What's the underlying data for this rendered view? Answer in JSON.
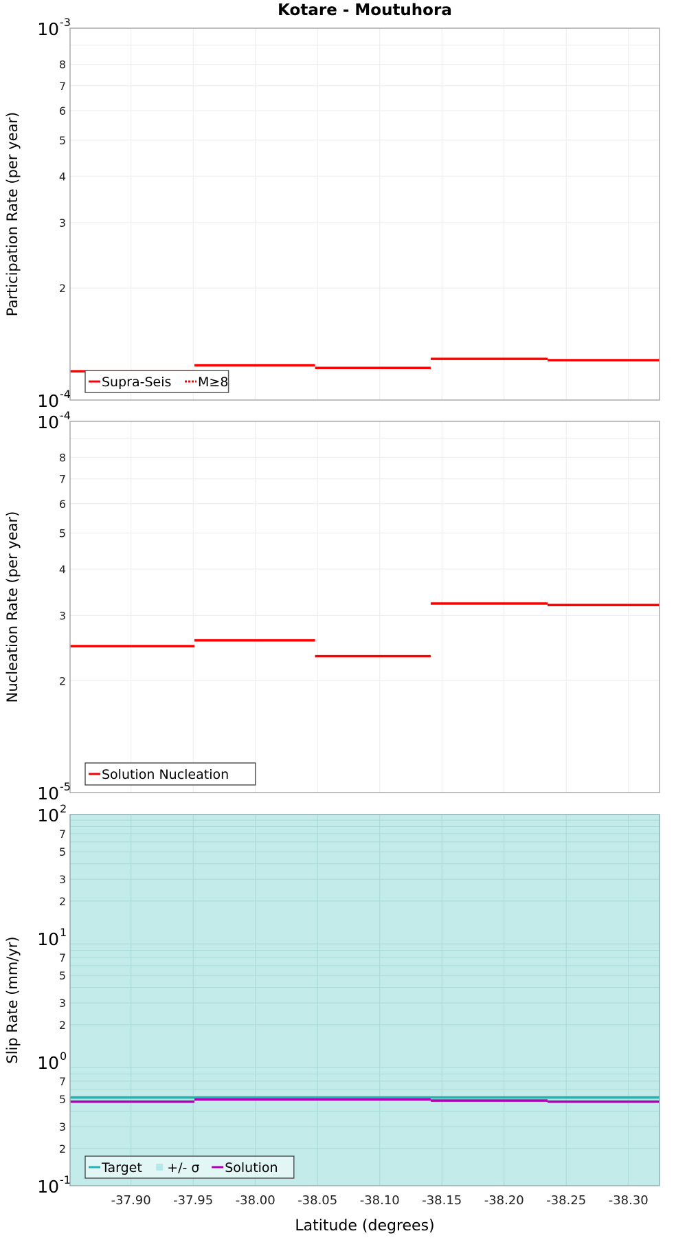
{
  "chart_data": [
    {
      "type": "line",
      "subtype": "step",
      "title": "Kotare - Moutuhora",
      "xlabel": "Latitude (degrees)",
      "ylabel": "Participation Rate (per year)",
      "yscale": "log",
      "ylim": [
        0.0001,
        0.001
      ],
      "xlim": [
        -37.851,
        -38.325
      ],
      "x_ticks": [
        "-37.90",
        "-37.95",
        "-38.00",
        "-38.05",
        "-38.10",
        "-38.15",
        "-38.20",
        "-38.25",
        "-38.30"
      ],
      "y_major_ticks": [
        {
          "base": "10",
          "exp": "-4",
          "value": 0.0001
        },
        {
          "base": "10",
          "exp": "-3",
          "value": 0.001
        }
      ],
      "y_minor_ticks": [
        "2",
        "3",
        "4",
        "5",
        "6",
        "7",
        "8"
      ],
      "grid": true,
      "legend_position": "lower-left",
      "legend": [
        {
          "label": "Supra-Seis",
          "color": "#ff0000",
          "style": "solid"
        },
        {
          "label": "M≥8",
          "color": "#ff0000",
          "style": "dotted"
        }
      ],
      "bin_edges": [
        -37.851,
        -37.951,
        -38.048,
        -38.141,
        -38.235,
        -38.325
      ],
      "series": [
        {
          "name": "Supra-Seis",
          "color": "#ff0000",
          "values": [
            0.0001195,
            0.000124,
            0.000122,
            0.000129,
            0.000128
          ]
        }
      ]
    },
    {
      "type": "line",
      "subtype": "step",
      "xlabel": "Latitude (degrees)",
      "ylabel": "Nucleation Rate (per year)",
      "yscale": "log",
      "ylim": [
        1e-05,
        0.0001
      ],
      "xlim": [
        -37.851,
        -38.325
      ],
      "y_major_ticks": [
        {
          "base": "10",
          "exp": "-5",
          "value": 1e-05
        },
        {
          "base": "10",
          "exp": "-4",
          "value": 0.0001
        }
      ],
      "y_minor_ticks": [
        "2",
        "3",
        "4",
        "5",
        "6",
        "7",
        "8"
      ],
      "grid": true,
      "legend_position": "lower-left",
      "legend": [
        {
          "label": "Solution Nucleation",
          "color": "#ff0000",
          "style": "solid"
        }
      ],
      "bin_edges": [
        -37.851,
        -37.951,
        -38.048,
        -38.141,
        -38.235,
        -38.325
      ],
      "series": [
        {
          "name": "Solution Nucleation",
          "color": "#ff0000",
          "values": [
            2.48e-05,
            2.57e-05,
            2.33e-05,
            3.23e-05,
            3.2e-05
          ]
        }
      ]
    },
    {
      "type": "line",
      "subtype": "step",
      "xlabel": "Latitude (degrees)",
      "ylabel": "Slip Rate (mm/yr)",
      "yscale": "log",
      "ylim": [
        0.1,
        100
      ],
      "xlim": [
        -37.851,
        -38.325
      ],
      "y_major_ticks": [
        {
          "base": "10",
          "exp": "-1",
          "value": 0.1
        },
        {
          "base": "10",
          "exp": "0",
          "value": 1
        },
        {
          "base": "10",
          "exp": "1",
          "value": 10
        },
        {
          "base": "10",
          "exp": "2",
          "value": 100
        }
      ],
      "y_minor_ticks": [
        "2",
        "3",
        "5",
        "7"
      ],
      "grid": true,
      "background_fill": "#c2ebea",
      "legend_position": "lower-left",
      "legend": [
        {
          "label": "Target",
          "color": "#1fb5b5",
          "style": "solid"
        },
        {
          "label": "+/- σ",
          "color": "#c2ebea",
          "style": "fill"
        },
        {
          "label": "Solution",
          "color": "#b000b8",
          "style": "solid"
        }
      ],
      "bin_edges": [
        -37.851,
        -37.951,
        -38.048,
        -38.141,
        -38.235,
        -38.325
      ],
      "series": [
        {
          "name": "Target",
          "color": "#1fb5b5",
          "values": [
            0.51,
            0.51,
            0.51,
            0.51,
            0.51
          ]
        },
        {
          "name": "+/- σ",
          "color": "#c2ebea",
          "lower": [
            0.1,
            0.1,
            0.1,
            0.1,
            0.1
          ],
          "upper": [
            100,
            100,
            100,
            100,
            100
          ]
        },
        {
          "name": "Solution",
          "color": "#b000b8",
          "values": [
            0.49,
            0.51,
            0.51,
            0.5,
            0.49
          ]
        }
      ]
    }
  ]
}
